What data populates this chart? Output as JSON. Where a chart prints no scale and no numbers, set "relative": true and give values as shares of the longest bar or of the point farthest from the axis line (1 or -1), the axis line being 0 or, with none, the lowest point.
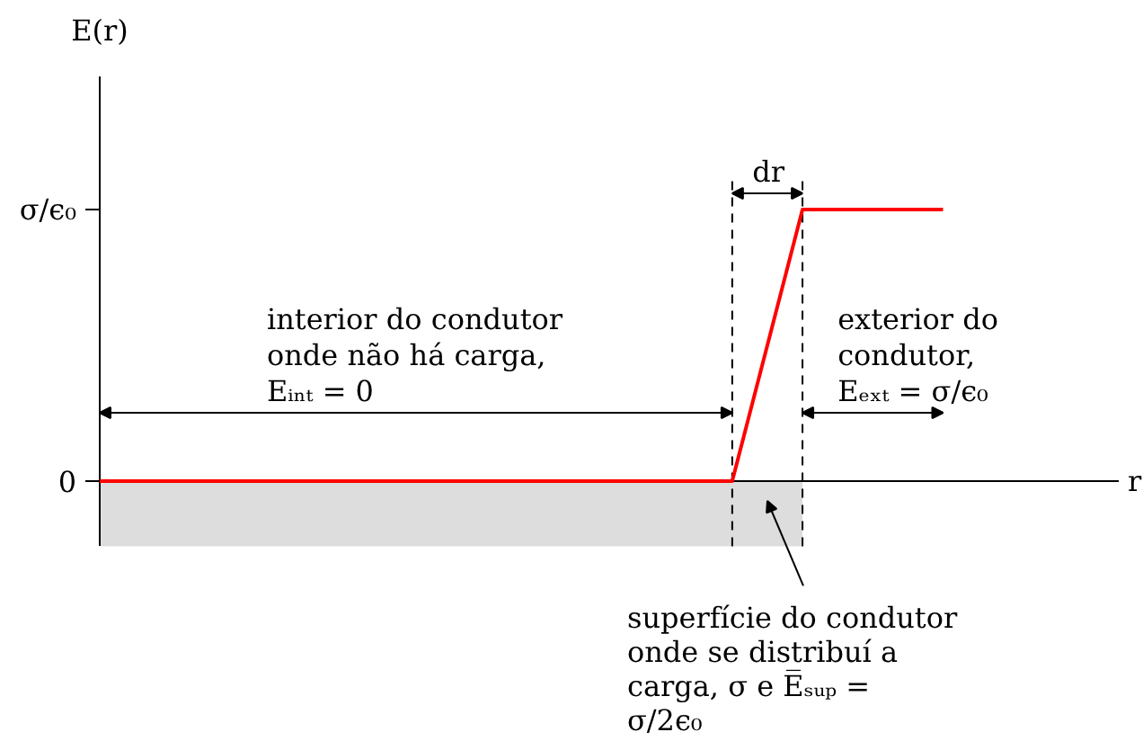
{
  "chart_data": {
    "type": "line",
    "relative": true,
    "categories": [
      null,
      null,
      null,
      null,
      null,
      null,
      null,
      null,
      null,
      null,
      null,
      null,
      null
    ],
    "series": [
      {
        "type": "area",
        "color": "#dddddd",
        "values": [
          -0.24,
          -0.24,
          -0.24,
          -0.24,
          -0.24,
          -0.24,
          -0.24,
          -0.24,
          -0.24,
          -0.24,
          -0.24,
          null,
          null
        ]
      },
      {
        "color": "#ff0000",
        "values": [
          0,
          0,
          0,
          0,
          0,
          0,
          0,
          0,
          0,
          0,
          1,
          1,
          1
        ]
      }
    ],
    "annotations": [
      "E(r)",
      "r",
      "0",
      "σ/ϵ₀",
      "interior do condutor\nonde não há carga,\nEᵢₙₜ = 0",
      "dr",
      "exterior do\ncondutor,\nEₑₓₜ = σ/ϵ₀",
      "superfície do condutor\nonde se distribuí a\ncarga, σ e E̅ₛᵤₚ =\nσ/2ϵ₀"
    ]
  }
}
